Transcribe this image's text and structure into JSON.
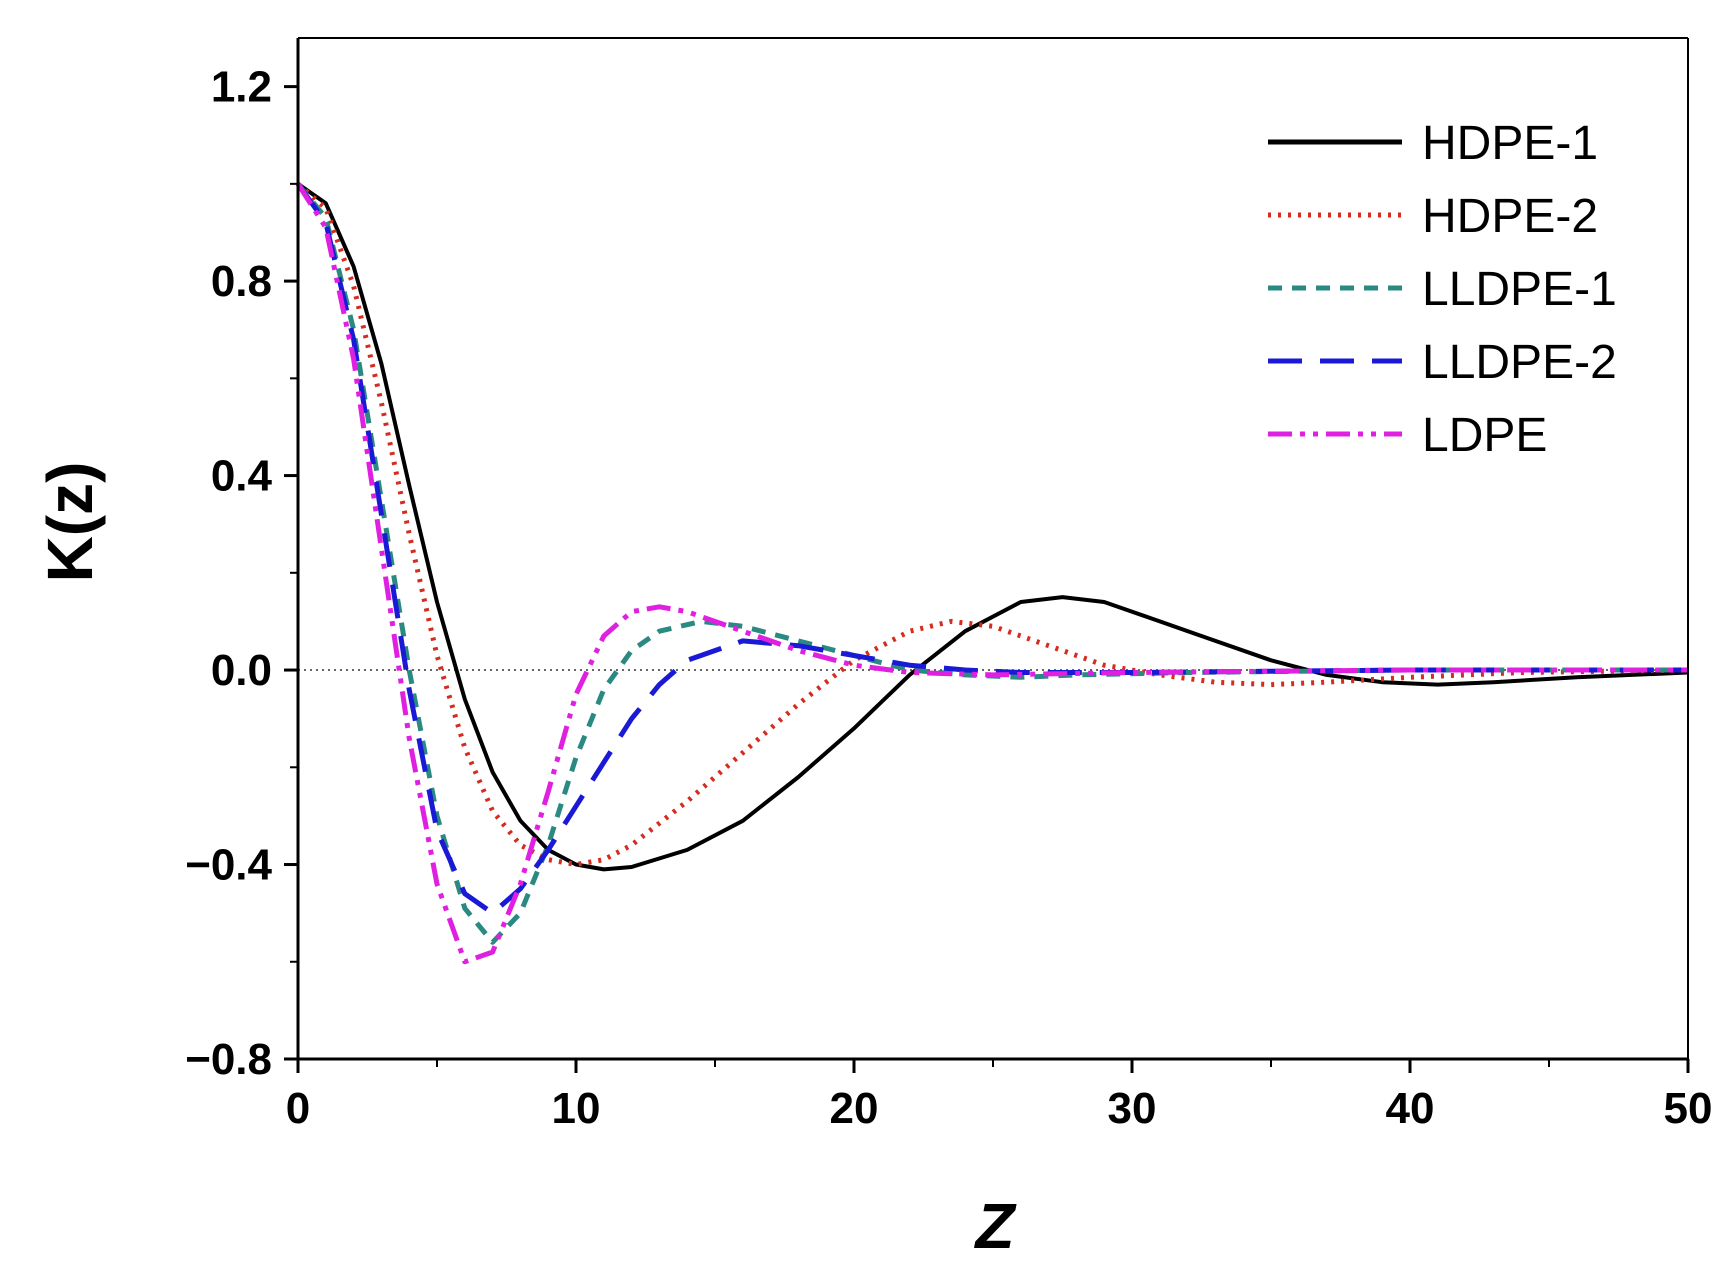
{
  "chart_data": {
    "type": "line",
    "xlabel": "Z",
    "ylabel": "K(z)",
    "xlim": [
      0,
      50
    ],
    "ylim": [
      -0.8,
      1.3
    ],
    "x_ticks": [
      {
        "value": 0,
        "label": "0"
      },
      {
        "value": 10,
        "label": "10"
      },
      {
        "value": 20,
        "label": "20"
      },
      {
        "value": 30,
        "label": "30"
      },
      {
        "value": 40,
        "label": "40"
      },
      {
        "value": 50,
        "label": "50"
      }
    ],
    "y_ticks": [
      {
        "value": -0.8,
        "label": "−0.8"
      },
      {
        "value": -0.4,
        "label": "−0.4"
      },
      {
        "value": 0.0,
        "label": "0.0"
      },
      {
        "value": 0.4,
        "label": "0.4"
      },
      {
        "value": 0.8,
        "label": "0.8"
      },
      {
        "value": 1.2,
        "label": "1.2"
      }
    ],
    "zero_reference_line": true,
    "legend_position": "top-right",
    "series": [
      {
        "name": "HDPE-1",
        "color": "#000000",
        "style": "solid",
        "points": [
          [
            0,
            1.0
          ],
          [
            1,
            0.96
          ],
          [
            2,
            0.83
          ],
          [
            3,
            0.63
          ],
          [
            4,
            0.38
          ],
          [
            5,
            0.14
          ],
          [
            6,
            -0.06
          ],
          [
            7,
            -0.21
          ],
          [
            8,
            -0.31
          ],
          [
            9,
            -0.37
          ],
          [
            10,
            -0.4
          ],
          [
            11,
            -0.41
          ],
          [
            12,
            -0.405
          ],
          [
            14,
            -0.37
          ],
          [
            16,
            -0.31
          ],
          [
            18,
            -0.22
          ],
          [
            20,
            -0.12
          ],
          [
            22,
            -0.01
          ],
          [
            24,
            0.08
          ],
          [
            26,
            0.14
          ],
          [
            27.5,
            0.15
          ],
          [
            29,
            0.14
          ],
          [
            31,
            0.1
          ],
          [
            33,
            0.06
          ],
          [
            35,
            0.02
          ],
          [
            37,
            -0.01
          ],
          [
            39,
            -0.025
          ],
          [
            41,
            -0.03
          ],
          [
            43,
            -0.025
          ],
          [
            46,
            -0.015
          ],
          [
            50,
            -0.005
          ]
        ]
      },
      {
        "name": "HDPE-2",
        "color": "#d62b1f",
        "style": "dotted",
        "points": [
          [
            0,
            1.0
          ],
          [
            1,
            0.95
          ],
          [
            2,
            0.79
          ],
          [
            3,
            0.55
          ],
          [
            4,
            0.28
          ],
          [
            5,
            0.03
          ],
          [
            6,
            -0.16
          ],
          [
            7,
            -0.29
          ],
          [
            8,
            -0.36
          ],
          [
            9,
            -0.39
          ],
          [
            10,
            -0.4
          ],
          [
            11,
            -0.39
          ],
          [
            12,
            -0.36
          ],
          [
            14,
            -0.27
          ],
          [
            16,
            -0.17
          ],
          [
            18,
            -0.07
          ],
          [
            20,
            0.02
          ],
          [
            22,
            0.08
          ],
          [
            23.5,
            0.1
          ],
          [
            25,
            0.09
          ],
          [
            27,
            0.05
          ],
          [
            29,
            0.01
          ],
          [
            31,
            -0.01
          ],
          [
            33,
            -0.025
          ],
          [
            35,
            -0.03
          ],
          [
            37,
            -0.025
          ],
          [
            40,
            -0.015
          ],
          [
            44,
            -0.005
          ],
          [
            50,
            0.0
          ]
        ]
      },
      {
        "name": "LLDPE-1",
        "color": "#2a8a82",
        "style": "short-dash",
        "points": [
          [
            0,
            1.0
          ],
          [
            1,
            0.93
          ],
          [
            2,
            0.7
          ],
          [
            3,
            0.35
          ],
          [
            4,
            0.0
          ],
          [
            5,
            -0.3
          ],
          [
            6,
            -0.49
          ],
          [
            7,
            -0.56
          ],
          [
            8,
            -0.5
          ],
          [
            9,
            -0.36
          ],
          [
            10,
            -0.18
          ],
          [
            11,
            -0.04
          ],
          [
            12,
            0.04
          ],
          [
            13,
            0.08
          ],
          [
            14.5,
            0.1
          ],
          [
            16,
            0.09
          ],
          [
            18,
            0.06
          ],
          [
            20,
            0.03
          ],
          [
            22,
            0.0
          ],
          [
            24,
            -0.01
          ],
          [
            26,
            -0.015
          ],
          [
            28,
            -0.01
          ],
          [
            32,
            -0.005
          ],
          [
            40,
            0.0
          ],
          [
            50,
            0.0
          ]
        ]
      },
      {
        "name": "LLDPE-2",
        "color": "#1a1ad6",
        "style": "long-dash",
        "points": [
          [
            0,
            1.0
          ],
          [
            1,
            0.92
          ],
          [
            2,
            0.68
          ],
          [
            3,
            0.32
          ],
          [
            4,
            -0.04
          ],
          [
            5,
            -0.33
          ],
          [
            6,
            -0.46
          ],
          [
            7,
            -0.5
          ],
          [
            8,
            -0.45
          ],
          [
            9,
            -0.37
          ],
          [
            10,
            -0.28
          ],
          [
            11,
            -0.19
          ],
          [
            12,
            -0.1
          ],
          [
            13,
            -0.03
          ],
          [
            14,
            0.02
          ],
          [
            16,
            0.06
          ],
          [
            18,
            0.05
          ],
          [
            20,
            0.03
          ],
          [
            22,
            0.01
          ],
          [
            24,
            0.0
          ],
          [
            26,
            -0.005
          ],
          [
            30,
            -0.005
          ],
          [
            40,
            0.0
          ],
          [
            50,
            0.0
          ]
        ]
      },
      {
        "name": "LDPE",
        "color": "#e020e0",
        "style": "dash-dot-dot",
        "points": [
          [
            0,
            1.0
          ],
          [
            1,
            0.91
          ],
          [
            2,
            0.64
          ],
          [
            3,
            0.25
          ],
          [
            4,
            -0.14
          ],
          [
            5,
            -0.44
          ],
          [
            6,
            -0.6
          ],
          [
            7,
            -0.58
          ],
          [
            8,
            -0.44
          ],
          [
            9,
            -0.25
          ],
          [
            10,
            -0.05
          ],
          [
            11,
            0.07
          ],
          [
            12,
            0.12
          ],
          [
            13,
            0.13
          ],
          [
            14,
            0.12
          ],
          [
            16,
            0.08
          ],
          [
            18,
            0.04
          ],
          [
            20,
            0.01
          ],
          [
            22,
            -0.005
          ],
          [
            25,
            -0.01
          ],
          [
            30,
            -0.005
          ],
          [
            40,
            0.0
          ],
          [
            50,
            0.0
          ]
        ]
      }
    ]
  }
}
